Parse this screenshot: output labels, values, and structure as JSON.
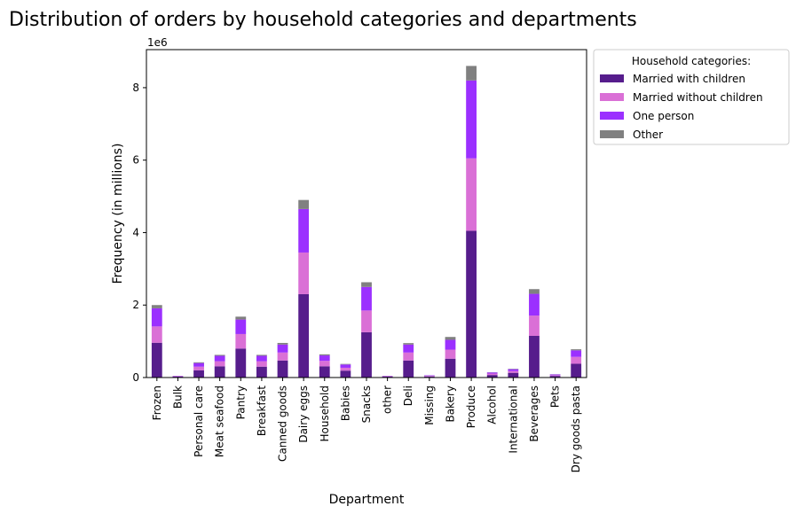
{
  "chart_data": {
    "type": "bar",
    "stacked": true,
    "title": "Distribution of orders by household categories and departments",
    "xlabel": "Department",
    "ylabel": "Frequency (in millions)",
    "y_offset_text": "1e6",
    "ylim": [
      0,
      9050000
    ],
    "yticks": [
      0,
      2000000,
      4000000,
      6000000,
      8000000
    ],
    "ytick_labels": [
      "0",
      "2",
      "4",
      "6",
      "8"
    ],
    "grid": false,
    "legend": {
      "title": "Household categories:",
      "placement": "outside top-right"
    },
    "categories": [
      "Frozen",
      "Bulk",
      "Personal care",
      "Meat seafood",
      "Pantry",
      "Breakfast",
      "Canned goods",
      "Dairy eggs",
      "Household",
      "Babies",
      "Snacks",
      "other",
      "Deli",
      "Missing",
      "Bakery",
      "Produce",
      "Alcohol",
      "International",
      "Beverages",
      "Pets",
      "Dry goods pasta"
    ],
    "series": [
      {
        "name": "Married with children",
        "color": "#561d8c",
        "values": [
          960000,
          25000,
          200000,
          310000,
          800000,
          300000,
          470000,
          2300000,
          310000,
          190000,
          1250000,
          25000,
          470000,
          30000,
          520000,
          4050000,
          70000,
          130000,
          1150000,
          45000,
          380000
        ]
      },
      {
        "name": "Married without children",
        "color": "#da70d6",
        "values": [
          450000,
          10000,
          100000,
          140000,
          400000,
          150000,
          220000,
          1150000,
          150000,
          80000,
          600000,
          10000,
          220000,
          15000,
          250000,
          2000000,
          40000,
          50000,
          560000,
          20000,
          190000
        ]
      },
      {
        "name": "One person",
        "color": "#9b30ff",
        "values": [
          500000,
          10000,
          100000,
          150000,
          400000,
          150000,
          220000,
          1200000,
          150000,
          90000,
          650000,
          10000,
          220000,
          15000,
          270000,
          2150000,
          30000,
          50000,
          600000,
          20000,
          180000
        ]
      },
      {
        "name": "Other",
        "color": "#808080",
        "values": [
          90000,
          2000,
          20000,
          25000,
          80000,
          25000,
          45000,
          250000,
          30000,
          15000,
          130000,
          3000,
          40000,
          3000,
          80000,
          400000,
          5000,
          10000,
          130000,
          5000,
          30000
        ]
      }
    ]
  }
}
